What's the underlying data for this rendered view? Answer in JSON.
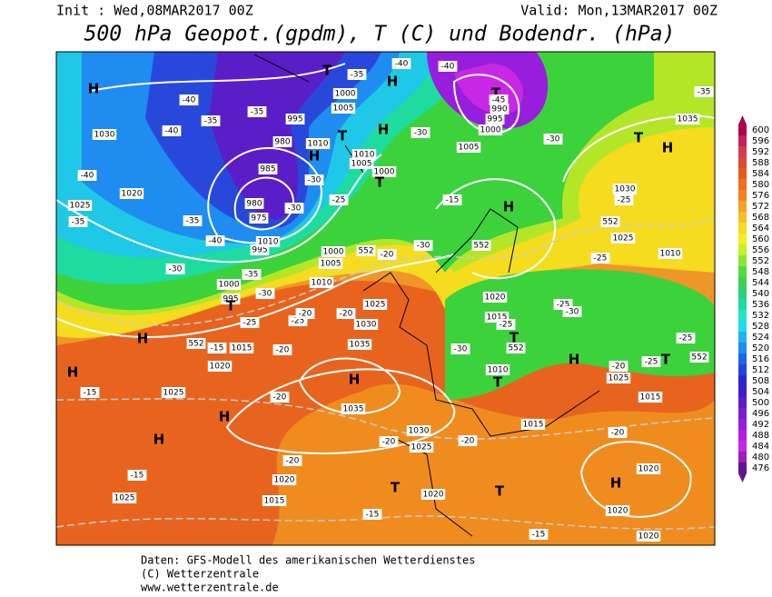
{
  "header": {
    "init": "Init : Wed,08MAR2017 00Z",
    "valid": "Valid: Mon,13MAR2017 00Z",
    "title": "500 hPa Geopot.(gpdm), T (C) und Bodendr. (hPa)"
  },
  "colorbar": {
    "values": [
      600,
      596,
      592,
      588,
      584,
      580,
      576,
      572,
      568,
      564,
      560,
      556,
      552,
      548,
      544,
      540,
      536,
      532,
      528,
      524,
      520,
      516,
      512,
      508,
      504,
      500,
      496,
      492,
      488,
      484,
      480,
      476
    ],
    "colors": [
      "#b4004e",
      "#c81e5a",
      "#d23c50",
      "#dc4a32",
      "#e65a1e",
      "#f06e1e",
      "#f5821e",
      "#f5a028",
      "#f5be28",
      "#f5dc1e",
      "#f0f01e",
      "#c8f028",
      "#8ce632",
      "#50dc3c",
      "#3cd250",
      "#28d278",
      "#1edca0",
      "#1ee6c8",
      "#1edcf0",
      "#1eb4f0",
      "#1e8cf0",
      "#1e64e6",
      "#1e46dc",
      "#2828d2",
      "#3c1ec8",
      "#5a1ec8",
      "#781ed2",
      "#961edc",
      "#b41ee6",
      "#c828e6",
      "#a01eb4",
      "#64148c"
    ]
  },
  "map": {
    "labels": [
      "H",
      "T",
      "1000",
      "H",
      "T",
      "990",
      "995",
      "1000",
      "-40",
      "-40",
      "-45",
      "-35",
      "1005",
      "995",
      "980",
      "1010",
      "T",
      "H",
      "1005",
      "1010",
      "H",
      "-30",
      "1005",
      "-30",
      "-35",
      "1035",
      "T",
      "H",
      "1030",
      "-40",
      "-35",
      "-35",
      "-40",
      "985",
      "1000",
      "T",
      "-30",
      "-25",
      "1020",
      "-40",
      "1025",
      "-35",
      "-35",
      "980",
      "975",
      "-30",
      "-40",
      "995",
      "1010",
      "1030",
      "-25",
      "552",
      "1025",
      "H",
      "-15",
      "1000",
      "1005",
      "1010",
      "552",
      "-20",
      "-30",
      "552",
      "1010",
      "-25",
      "-30",
      "-35",
      "1000",
      "995",
      "-30",
      "T",
      "-25",
      "-25",
      "-20",
      "-20",
      "1025",
      "1030",
      "1020",
      "1015",
      "-25",
      "-25",
      "-30",
      "T",
      "552",
      "-30",
      "H",
      "552",
      "-15",
      "1015",
      "1020",
      "1035",
      "-20",
      "H",
      "1025",
      "-20",
      "1035",
      "-15",
      "H",
      "H",
      "-25",
      "552",
      "H",
      "T",
      "-25",
      "1025",
      "-20",
      "1015",
      "1010",
      "T",
      "H",
      "1030",
      "1025",
      "-20",
      "-20",
      "1015",
      "-15",
      "-20",
      "1020",
      "1025",
      "1015",
      "T",
      "1020",
      "T",
      "-15",
      "H",
      "1020",
      "1020",
      "-20",
      "-15",
      "1020"
    ]
  },
  "footer": {
    "line1": "Daten: GFS-Modell des amerikanischen Wetterdienstes",
    "line2": "(C) Wetterzentrale",
    "line3": "www.wetterzentrale.de"
  }
}
